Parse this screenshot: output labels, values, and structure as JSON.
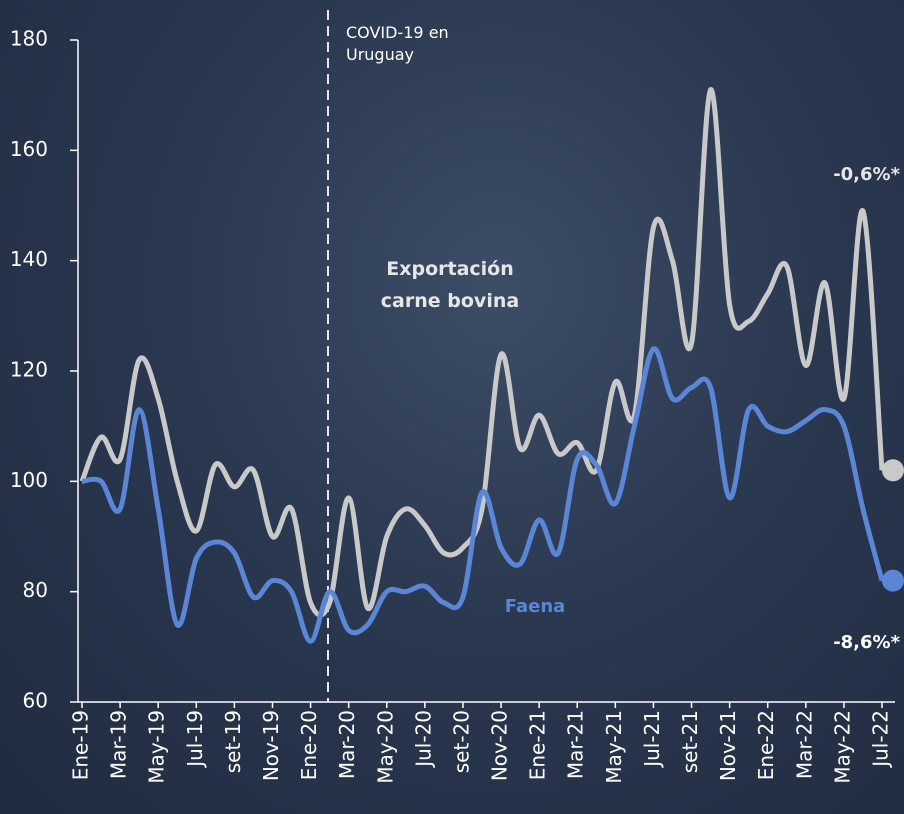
{
  "chart_data": {
    "type": "line",
    "annotation": "COVID-19 en Uruguay",
    "categories": [
      "Ene-19",
      null,
      "Mar-19",
      null,
      "May-19",
      null,
      "Jul-19",
      null,
      "set-19",
      null,
      "Nov-19",
      null,
      "Ene-20",
      null,
      "Mar-20",
      null,
      "May-20",
      null,
      "Jul-20",
      null,
      "set-20",
      null,
      "Nov-20",
      null,
      "Ene-21",
      null,
      "Mar-21",
      null,
      "May-21",
      null,
      "Jul-21",
      null,
      "set-21",
      null,
      "Nov-21",
      null,
      "Ene-22",
      null,
      "Mar-22",
      null,
      "May-22",
      null,
      "Jul-22"
    ],
    "series": [
      {
        "name": "Exportación carne bovina",
        "color": "#c9c9c9",
        "end_label": "-0,6%*",
        "values": [
          100,
          108,
          104,
          122,
          115,
          100,
          91,
          103,
          99,
          102,
          90,
          95,
          78,
          78,
          97,
          77,
          90,
          95,
          92,
          87,
          88,
          95,
          123,
          106,
          112,
          105,
          107,
          102,
          118,
          112,
          146,
          140,
          125,
          171,
          132,
          129,
          134,
          139,
          121,
          136,
          115,
          149,
          102
        ]
      },
      {
        "name": "Faena",
        "color": "#5b86d6",
        "end_label": "-8,6%*",
        "values": [
          100,
          100,
          95,
          113,
          95,
          74,
          86,
          89,
          87,
          79,
          82,
          80,
          71,
          80,
          73,
          74,
          80,
          80,
          81,
          78,
          79,
          98,
          88,
          85,
          93,
          87,
          104,
          103,
          96,
          110,
          124,
          115,
          117,
          117,
          97,
          113,
          110,
          109,
          111,
          113,
          110,
          95,
          82
        ]
      }
    ],
    "ylim": [
      60,
      180
    ],
    "yticks": [
      60,
      80,
      100,
      120,
      140,
      160,
      180
    ]
  }
}
